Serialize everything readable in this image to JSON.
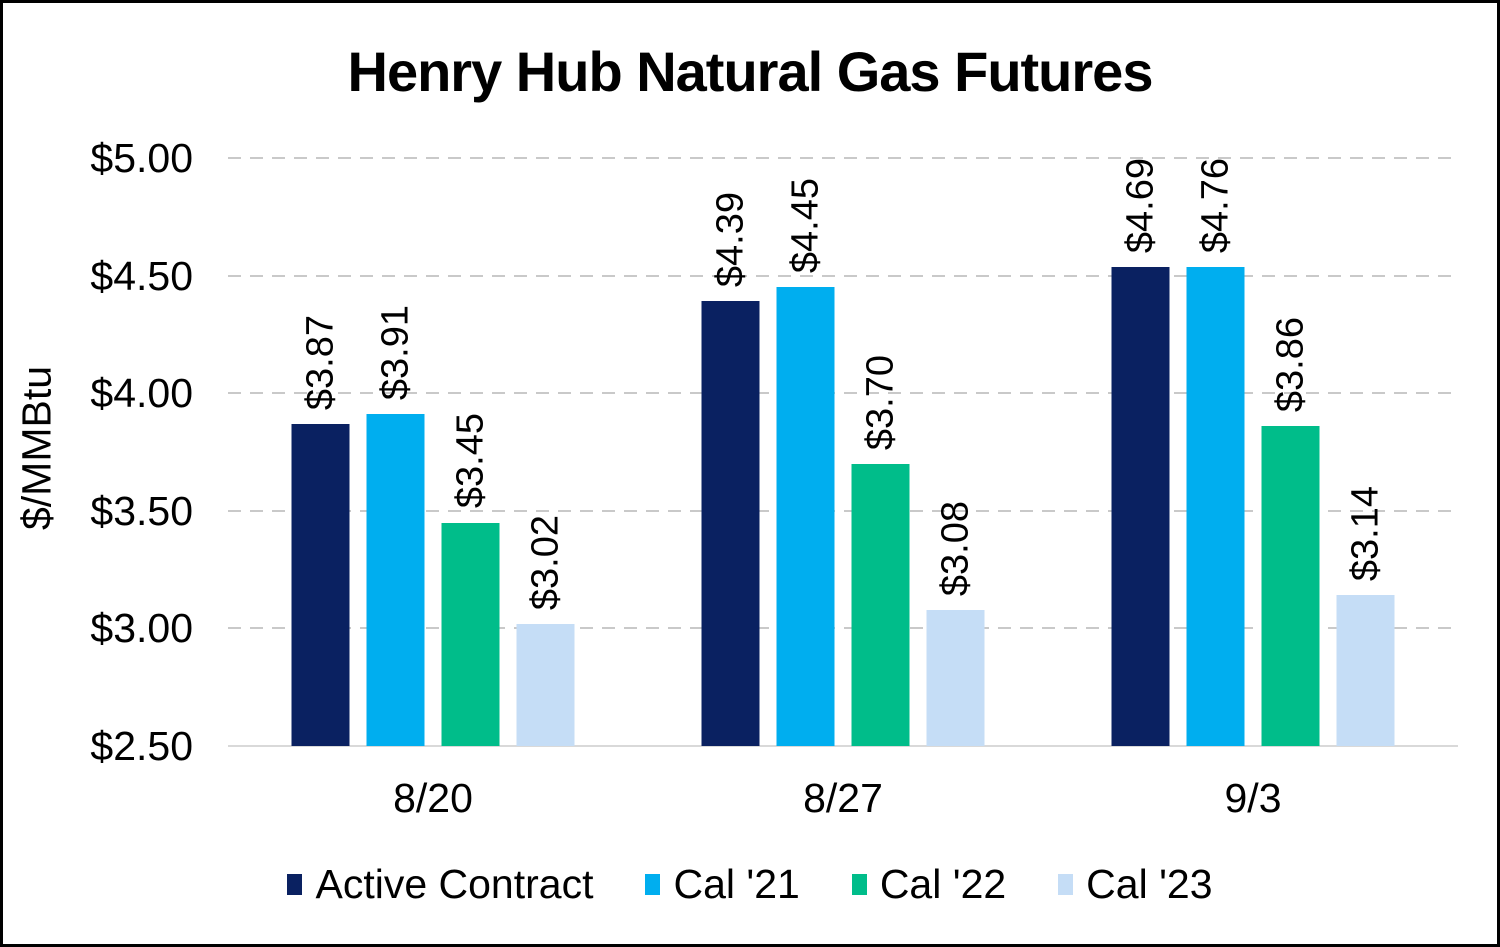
{
  "chart_data": {
    "type": "bar",
    "title": "Henry Hub Natural Gas Futures",
    "ylabel": "$/MMBtu",
    "xlabel": "",
    "categories": [
      "8/20",
      "8/27",
      "9/3"
    ],
    "series": [
      {
        "name": "Active Contract",
        "color": "#0a2161",
        "values": [
          3.87,
          4.39,
          4.69
        ],
        "labels": [
          "$3.87",
          "$4.39",
          "$4.69"
        ]
      },
      {
        "name": "Cal '21",
        "color": "#00aeef",
        "values": [
          3.91,
          4.45,
          4.76
        ],
        "labels": [
          "$3.91",
          "$4.45",
          "$4.76"
        ]
      },
      {
        "name": "Cal '22",
        "color": "#00bd8a",
        "values": [
          3.45,
          3.7,
          3.86
        ],
        "labels": [
          "$3.45",
          "$3.70",
          "$3.86"
        ]
      },
      {
        "name": "Cal '23",
        "color": "#c5ddf6",
        "values": [
          3.02,
          3.08,
          3.14
        ],
        "labels": [
          "$3.02",
          "$3.08",
          "$3.14"
        ]
      }
    ],
    "y_axis": {
      "min": 2.5,
      "max": 5.0,
      "step": 0.5,
      "tick_labels": [
        "$2.50",
        "$3.00",
        "$3.50",
        "$4.00",
        "$4.50",
        "$5.00"
      ]
    },
    "grid": {
      "horizontal_dashed": true,
      "color": "#c9c9c9",
      "baseline_color": "#d9d9d9"
    },
    "legend_position": "bottom",
    "data_label_rotation_deg": 90
  }
}
